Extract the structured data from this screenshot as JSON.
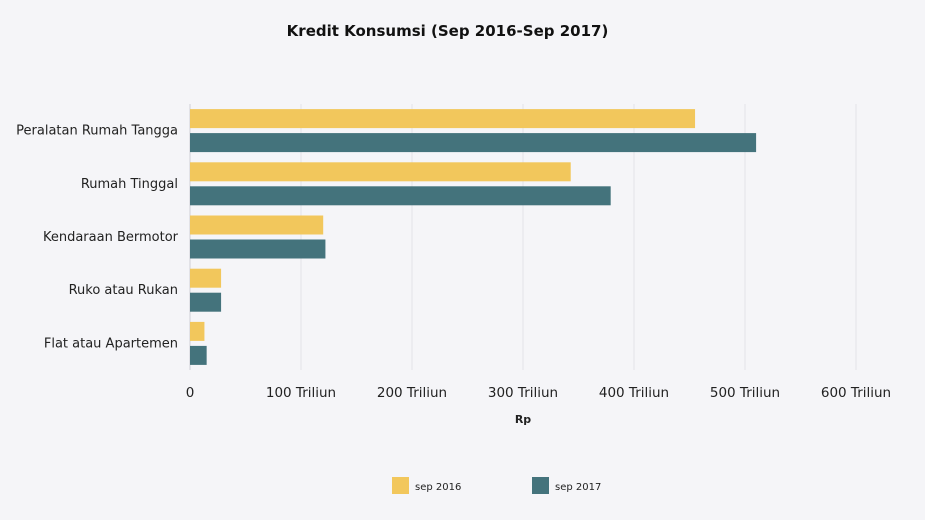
{
  "chart_data": {
    "type": "bar",
    "orientation": "horizontal",
    "title": "Kredit Konsumsi (Sep 2016-Sep 2017)",
    "xlabel": "Rp",
    "ylabel": "",
    "categories": [
      "Peralatan Rumah Tangga",
      "Rumah Tinggal",
      "Kendaraan Bermotor",
      "Ruko atau Rukan",
      "Flat atau Apartemen"
    ],
    "series": [
      {
        "name": "sep 2016",
        "color": "#f2c75c",
        "values": [
          455,
          343,
          120,
          28,
          13
        ]
      },
      {
        "name": "sep 2017",
        "color": "#44737c",
        "values": [
          510,
          379,
          122,
          28,
          15
        ]
      }
    ],
    "xlim": [
      0,
      600
    ],
    "ticks": [
      0,
      100,
      200,
      300,
      400,
      500,
      600
    ],
    "tick_labels": [
      "0",
      "100 Triliun",
      "200 Triliun",
      "300 Triliun",
      "400 Triliun",
      "500 Triliun",
      "600 Triliun"
    ],
    "grid": true,
    "legend_position": "bottom"
  }
}
